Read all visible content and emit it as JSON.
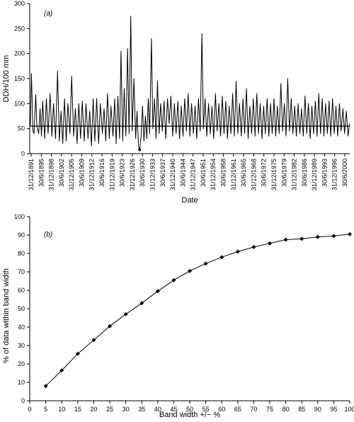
{
  "chart_data": [
    {
      "type": "line",
      "panel_label": "(a)",
      "xlabel": "Date",
      "ylabel": "DDH/100 mm",
      "ylim": [
        0,
        300
      ],
      "y_ticks": [
        "0",
        "50",
        "100",
        "150",
        "200",
        "250",
        "300"
      ],
      "x_ticks": [
        "31/12/1891",
        "30/6/1895",
        "31/12/1898",
        "30/6/1902",
        "31/12/1905",
        "30/6/1909",
        "31/12/1912",
        "30/6/1916",
        "31/12/1919",
        "30/6/1923",
        "31/12/1926",
        "30/6/1930",
        "31/12/1933",
        "30/6/1937",
        "31/12/1940",
        "30/6/1944",
        "31/12/1947",
        "30/6/1951",
        "31/12/1954",
        "30/6/1958",
        "31/12/1961",
        "30/6/1965",
        "31/12/1968",
        "30/6/1972",
        "31/12/1975",
        "30/6/1979",
        "31/12/1982",
        "30/6/1986",
        "31/12/1989",
        "30/6/1993",
        "31/12/1996",
        "30/6/2000"
      ],
      "x_range": [
        1891.5,
        2003.0
      ],
      "series": [
        {
          "values": [
            [
              1891.7,
              55
            ],
            [
              1892.1,
              160
            ],
            [
              1892.6,
              45
            ],
            [
              1893.0,
              40
            ],
            [
              1893.6,
              118
            ],
            [
              1894.0,
              55
            ],
            [
              1894.6,
              40
            ],
            [
              1895.1,
              90
            ],
            [
              1895.6,
              35
            ],
            [
              1896.0,
              105
            ],
            [
              1896.7,
              30
            ],
            [
              1897.3,
              110
            ],
            [
              1897.9,
              40
            ],
            [
              1898.6,
              120
            ],
            [
              1899.2,
              35
            ],
            [
              1899.8,
              100
            ],
            [
              1900.5,
              30
            ],
            [
              1901.2,
              165
            ],
            [
              1901.8,
              25
            ],
            [
              1902.4,
              85
            ],
            [
              1903.0,
              20
            ],
            [
              1903.6,
              110
            ],
            [
              1904.2,
              25
            ],
            [
              1904.8,
              100
            ],
            [
              1905.5,
              40
            ],
            [
              1906.1,
              155
            ],
            [
              1906.8,
              35
            ],
            [
              1907.4,
              90
            ],
            [
              1908.0,
              20
            ],
            [
              1908.6,
              100
            ],
            [
              1909.2,
              30
            ],
            [
              1909.8,
              105
            ],
            [
              1910.5,
              25
            ],
            [
              1911.1,
              100
            ],
            [
              1911.8,
              30
            ],
            [
              1912.4,
              85
            ],
            [
              1913.0,
              15
            ],
            [
              1913.6,
              110
            ],
            [
              1914.2,
              25
            ],
            [
              1914.8,
              110
            ],
            [
              1915.5,
              20
            ],
            [
              1916.1,
              100
            ],
            [
              1916.8,
              40
            ],
            [
              1917.4,
              90
            ],
            [
              1918.0,
              25
            ],
            [
              1918.6,
              120
            ],
            [
              1919.2,
              30
            ],
            [
              1919.8,
              95
            ],
            [
              1920.5,
              35
            ],
            [
              1921.1,
              110
            ],
            [
              1921.6,
              20
            ],
            [
              1922.2,
              115
            ],
            [
              1922.8,
              30
            ],
            [
              1923.3,
              205
            ],
            [
              1923.9,
              25
            ],
            [
              1924.4,
              130
            ],
            [
              1925.0,
              35
            ],
            [
              1925.6,
              210
            ],
            [
              1926.1,
              40
            ],
            [
              1926.7,
              275
            ],
            [
              1927.2,
              45
            ],
            [
              1927.8,
              150
            ],
            [
              1928.4,
              30
            ],
            [
              1928.9,
              85
            ],
            [
              1929.4,
              15
            ],
            [
              1929.8,
              8
            ],
            [
              1930.3,
              35
            ],
            [
              1930.8,
              95
            ],
            [
              1931.3,
              25
            ],
            [
              1931.8,
              75
            ],
            [
              1932.3,
              30
            ],
            [
              1932.8,
              110
            ],
            [
              1933.3,
              40
            ],
            [
              1933.9,
              230
            ],
            [
              1934.4,
              50
            ],
            [
              1935.0,
              110
            ],
            [
              1935.5,
              30
            ],
            [
              1936.0,
              145
            ],
            [
              1936.6,
              40
            ],
            [
              1937.1,
              100
            ],
            [
              1937.7,
              45
            ],
            [
              1938.3,
              105
            ],
            [
              1938.9,
              30
            ],
            [
              1939.5,
              110
            ],
            [
              1940.1,
              60
            ],
            [
              1940.7,
              115
            ],
            [
              1941.3,
              35
            ],
            [
              1941.9,
              100
            ],
            [
              1942.5,
              40
            ],
            [
              1943.1,
              105
            ],
            [
              1943.7,
              30
            ],
            [
              1944.3,
              95
            ],
            [
              1944.9,
              35
            ],
            [
              1945.5,
              110
            ],
            [
              1946.1,
              45
            ],
            [
              1946.7,
              120
            ],
            [
              1947.3,
              35
            ],
            [
              1947.9,
              100
            ],
            [
              1948.5,
              40
            ],
            [
              1949.1,
              95
            ],
            [
              1949.7,
              30
            ],
            [
              1950.3,
              110
            ],
            [
              1950.9,
              45
            ],
            [
              1951.5,
              240
            ],
            [
              1952.0,
              50
            ],
            [
              1952.6,
              110
            ],
            [
              1953.2,
              35
            ],
            [
              1953.8,
              100
            ],
            [
              1954.4,
              40
            ],
            [
              1955.0,
              95
            ],
            [
              1955.6,
              30
            ],
            [
              1956.2,
              120
            ],
            [
              1956.8,
              45
            ],
            [
              1957.4,
              100
            ],
            [
              1958.0,
              35
            ],
            [
              1958.6,
              115
            ],
            [
              1959.2,
              40
            ],
            [
              1959.8,
              105
            ],
            [
              1960.4,
              30
            ],
            [
              1961.0,
              95
            ],
            [
              1961.6,
              40
            ],
            [
              1962.2,
              120
            ],
            [
              1962.8,
              35
            ],
            [
              1963.4,
              145
            ],
            [
              1964.0,
              40
            ],
            [
              1964.6,
              100
            ],
            [
              1965.2,
              35
            ],
            [
              1965.8,
              110
            ],
            [
              1966.4,
              40
            ],
            [
              1967.0,
              130
            ],
            [
              1967.6,
              30
            ],
            [
              1968.2,
              95
            ],
            [
              1968.8,
              40
            ],
            [
              1969.4,
              110
            ],
            [
              1970.0,
              35
            ],
            [
              1970.6,
              120
            ],
            [
              1971.2,
              40
            ],
            [
              1971.8,
              100
            ],
            [
              1972.4,
              30
            ],
            [
              1973.0,
              95
            ],
            [
              1973.6,
              40
            ],
            [
              1974.2,
              110
            ],
            [
              1974.8,
              35
            ],
            [
              1975.4,
              100
            ],
            [
              1976.0,
              40
            ],
            [
              1976.6,
              110
            ],
            [
              1977.2,
              35
            ],
            [
              1977.8,
              95
            ],
            [
              1978.4,
              40
            ],
            [
              1979.0,
              140
            ],
            [
              1979.6,
              45
            ],
            [
              1980.2,
              100
            ],
            [
              1980.8,
              35
            ],
            [
              1981.4,
              150
            ],
            [
              1982.0,
              45
            ],
            [
              1982.6,
              110
            ],
            [
              1983.2,
              40
            ],
            [
              1983.8,
              95
            ],
            [
              1984.4,
              35
            ],
            [
              1985.0,
              100
            ],
            [
              1985.6,
              40
            ],
            [
              1986.2,
              90
            ],
            [
              1986.8,
              35
            ],
            [
              1987.4,
              115
            ],
            [
              1988.0,
              40
            ],
            [
              1988.6,
              100
            ],
            [
              1989.2,
              30
            ],
            [
              1989.8,
              95
            ],
            [
              1990.4,
              40
            ],
            [
              1991.0,
              105
            ],
            [
              1991.6,
              35
            ],
            [
              1992.2,
              120
            ],
            [
              1992.8,
              40
            ],
            [
              1993.4,
              110
            ],
            [
              1994.0,
              35
            ],
            [
              1994.6,
              100
            ],
            [
              1995.2,
              40
            ],
            [
              1995.8,
              105
            ],
            [
              1996.4,
              35
            ],
            [
              1997.0,
              110
            ],
            [
              1997.6,
              40
            ],
            [
              1998.2,
              95
            ],
            [
              1998.8,
              35
            ],
            [
              1999.4,
              100
            ],
            [
              2000.0,
              45
            ],
            [
              2000.6,
              90
            ],
            [
              2001.2,
              40
            ],
            [
              2001.8,
              85
            ],
            [
              2002.4,
              35
            ],
            [
              2002.9,
              60
            ]
          ]
        }
      ],
      "reference_line": 55,
      "marker_point": [
        1929.8,
        8
      ]
    },
    {
      "type": "line",
      "panel_label": "(b)",
      "xlabel": "Band width +/− %",
      "ylabel": "% of data within band width",
      "xlim": [
        0,
        100
      ],
      "ylim": [
        0,
        100
      ],
      "x_ticks": [
        "0",
        "5",
        "10",
        "15",
        "20",
        "25",
        "30",
        "35",
        "40",
        "45",
        "50",
        "55",
        "60",
        "65",
        "70",
        "75",
        "80",
        "85",
        "90",
        "95",
        "100"
      ],
      "y_ticks": [
        "0",
        "10",
        "20",
        "30",
        "40",
        "50",
        "60",
        "70",
        "80",
        "90",
        "100"
      ],
      "marker": "diamond",
      "x": [
        5,
        10,
        15,
        20,
        25,
        30,
        35,
        40,
        45,
        50,
        55,
        60,
        65,
        70,
        75,
        80,
        85,
        90,
        95,
        100
      ],
      "series": [
        {
          "values": [
            8,
            16.5,
            25.5,
            33,
            40.5,
            47,
            53,
            59.5,
            65.5,
            70.5,
            74.5,
            78,
            81,
            83.5,
            85.5,
            87.5,
            88,
            89,
            89.5,
            90.5
          ]
        }
      ]
    }
  ]
}
